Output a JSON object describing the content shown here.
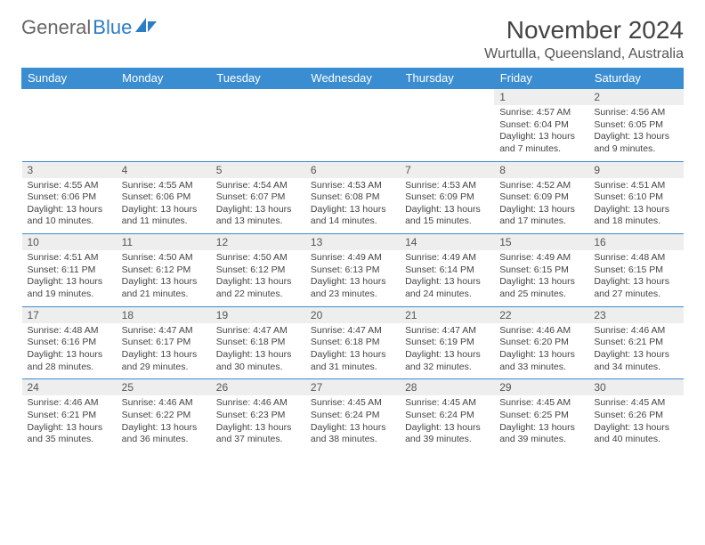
{
  "logo": {
    "text1": "General",
    "text2": "Blue"
  },
  "title": "November 2024",
  "location": "Wurtulla, Queensland, Australia",
  "colors": {
    "header_bg": "#3a8dd0",
    "header_text": "#ffffff",
    "daynum_bg": "#eeeeee",
    "logo_gray": "#666666",
    "logo_blue": "#2d7dc4"
  },
  "weekdays": [
    "Sunday",
    "Monday",
    "Tuesday",
    "Wednesday",
    "Thursday",
    "Friday",
    "Saturday"
  ],
  "weeks": [
    [
      {
        "empty": true
      },
      {
        "empty": true
      },
      {
        "empty": true
      },
      {
        "empty": true
      },
      {
        "empty": true
      },
      {
        "num": "1",
        "sunrise": "Sunrise: 4:57 AM",
        "sunset": "Sunset: 6:04 PM",
        "day1": "Daylight: 13 hours",
        "day2": "and 7 minutes."
      },
      {
        "num": "2",
        "sunrise": "Sunrise: 4:56 AM",
        "sunset": "Sunset: 6:05 PM",
        "day1": "Daylight: 13 hours",
        "day2": "and 9 minutes."
      }
    ],
    [
      {
        "num": "3",
        "sunrise": "Sunrise: 4:55 AM",
        "sunset": "Sunset: 6:06 PM",
        "day1": "Daylight: 13 hours",
        "day2": "and 10 minutes."
      },
      {
        "num": "4",
        "sunrise": "Sunrise: 4:55 AM",
        "sunset": "Sunset: 6:06 PM",
        "day1": "Daylight: 13 hours",
        "day2": "and 11 minutes."
      },
      {
        "num": "5",
        "sunrise": "Sunrise: 4:54 AM",
        "sunset": "Sunset: 6:07 PM",
        "day1": "Daylight: 13 hours",
        "day2": "and 13 minutes."
      },
      {
        "num": "6",
        "sunrise": "Sunrise: 4:53 AM",
        "sunset": "Sunset: 6:08 PM",
        "day1": "Daylight: 13 hours",
        "day2": "and 14 minutes."
      },
      {
        "num": "7",
        "sunrise": "Sunrise: 4:53 AM",
        "sunset": "Sunset: 6:09 PM",
        "day1": "Daylight: 13 hours",
        "day2": "and 15 minutes."
      },
      {
        "num": "8",
        "sunrise": "Sunrise: 4:52 AM",
        "sunset": "Sunset: 6:09 PM",
        "day1": "Daylight: 13 hours",
        "day2": "and 17 minutes."
      },
      {
        "num": "9",
        "sunrise": "Sunrise: 4:51 AM",
        "sunset": "Sunset: 6:10 PM",
        "day1": "Daylight: 13 hours",
        "day2": "and 18 minutes."
      }
    ],
    [
      {
        "num": "10",
        "sunrise": "Sunrise: 4:51 AM",
        "sunset": "Sunset: 6:11 PM",
        "day1": "Daylight: 13 hours",
        "day2": "and 19 minutes."
      },
      {
        "num": "11",
        "sunrise": "Sunrise: 4:50 AM",
        "sunset": "Sunset: 6:12 PM",
        "day1": "Daylight: 13 hours",
        "day2": "and 21 minutes."
      },
      {
        "num": "12",
        "sunrise": "Sunrise: 4:50 AM",
        "sunset": "Sunset: 6:12 PM",
        "day1": "Daylight: 13 hours",
        "day2": "and 22 minutes."
      },
      {
        "num": "13",
        "sunrise": "Sunrise: 4:49 AM",
        "sunset": "Sunset: 6:13 PM",
        "day1": "Daylight: 13 hours",
        "day2": "and 23 minutes."
      },
      {
        "num": "14",
        "sunrise": "Sunrise: 4:49 AM",
        "sunset": "Sunset: 6:14 PM",
        "day1": "Daylight: 13 hours",
        "day2": "and 24 minutes."
      },
      {
        "num": "15",
        "sunrise": "Sunrise: 4:49 AM",
        "sunset": "Sunset: 6:15 PM",
        "day1": "Daylight: 13 hours",
        "day2": "and 25 minutes."
      },
      {
        "num": "16",
        "sunrise": "Sunrise: 4:48 AM",
        "sunset": "Sunset: 6:15 PM",
        "day1": "Daylight: 13 hours",
        "day2": "and 27 minutes."
      }
    ],
    [
      {
        "num": "17",
        "sunrise": "Sunrise: 4:48 AM",
        "sunset": "Sunset: 6:16 PM",
        "day1": "Daylight: 13 hours",
        "day2": "and 28 minutes."
      },
      {
        "num": "18",
        "sunrise": "Sunrise: 4:47 AM",
        "sunset": "Sunset: 6:17 PM",
        "day1": "Daylight: 13 hours",
        "day2": "and 29 minutes."
      },
      {
        "num": "19",
        "sunrise": "Sunrise: 4:47 AM",
        "sunset": "Sunset: 6:18 PM",
        "day1": "Daylight: 13 hours",
        "day2": "and 30 minutes."
      },
      {
        "num": "20",
        "sunrise": "Sunrise: 4:47 AM",
        "sunset": "Sunset: 6:18 PM",
        "day1": "Daylight: 13 hours",
        "day2": "and 31 minutes."
      },
      {
        "num": "21",
        "sunrise": "Sunrise: 4:47 AM",
        "sunset": "Sunset: 6:19 PM",
        "day1": "Daylight: 13 hours",
        "day2": "and 32 minutes."
      },
      {
        "num": "22",
        "sunrise": "Sunrise: 4:46 AM",
        "sunset": "Sunset: 6:20 PM",
        "day1": "Daylight: 13 hours",
        "day2": "and 33 minutes."
      },
      {
        "num": "23",
        "sunrise": "Sunrise: 4:46 AM",
        "sunset": "Sunset: 6:21 PM",
        "day1": "Daylight: 13 hours",
        "day2": "and 34 minutes."
      }
    ],
    [
      {
        "num": "24",
        "sunrise": "Sunrise: 4:46 AM",
        "sunset": "Sunset: 6:21 PM",
        "day1": "Daylight: 13 hours",
        "day2": "and 35 minutes."
      },
      {
        "num": "25",
        "sunrise": "Sunrise: 4:46 AM",
        "sunset": "Sunset: 6:22 PM",
        "day1": "Daylight: 13 hours",
        "day2": "and 36 minutes."
      },
      {
        "num": "26",
        "sunrise": "Sunrise: 4:46 AM",
        "sunset": "Sunset: 6:23 PM",
        "day1": "Daylight: 13 hours",
        "day2": "and 37 minutes."
      },
      {
        "num": "27",
        "sunrise": "Sunrise: 4:45 AM",
        "sunset": "Sunset: 6:24 PM",
        "day1": "Daylight: 13 hours",
        "day2": "and 38 minutes."
      },
      {
        "num": "28",
        "sunrise": "Sunrise: 4:45 AM",
        "sunset": "Sunset: 6:24 PM",
        "day1": "Daylight: 13 hours",
        "day2": "and 39 minutes."
      },
      {
        "num": "29",
        "sunrise": "Sunrise: 4:45 AM",
        "sunset": "Sunset: 6:25 PM",
        "day1": "Daylight: 13 hours",
        "day2": "and 39 minutes."
      },
      {
        "num": "30",
        "sunrise": "Sunrise: 4:45 AM",
        "sunset": "Sunset: 6:26 PM",
        "day1": "Daylight: 13 hours",
        "day2": "and 40 minutes."
      }
    ]
  ]
}
